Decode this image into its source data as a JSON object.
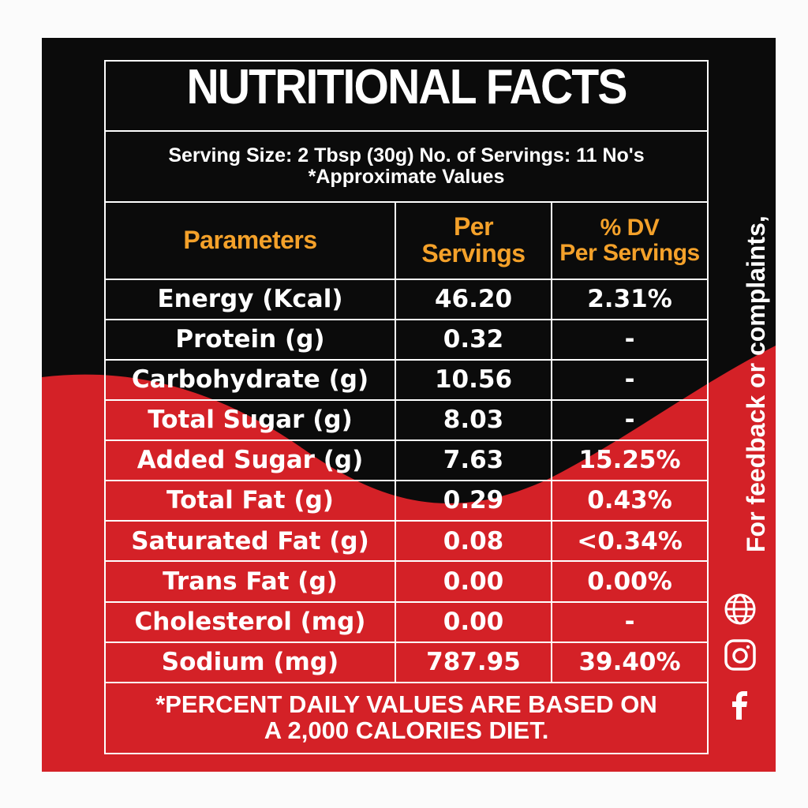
{
  "title": "NUTRITIONAL FACTS",
  "serving": {
    "line1": "Serving Size: 2 Tbsp (30g) No. of Servings: 11 No's",
    "line2": "*Approximate Values"
  },
  "headers": {
    "parameters": "Parameters",
    "per_servings_1": "Per",
    "per_servings_2": "Servings",
    "dv_1": "% DV",
    "dv_2": "Per Servings"
  },
  "rows": [
    {
      "parameter": "Energy (Kcal)",
      "per_serving": "46.20",
      "dv": "2.31%"
    },
    {
      "parameter": "Protein (g)",
      "per_serving": "0.32",
      "dv": "-"
    },
    {
      "parameter": "Carbohydrate (g)",
      "per_serving": "10.56",
      "dv": "-"
    },
    {
      "parameter": "Total Sugar (g)",
      "per_serving": "8.03",
      "dv": "-"
    },
    {
      "parameter": "Added Sugar (g)",
      "per_serving": "7.63",
      "dv": "15.25%"
    },
    {
      "parameter": "Total Fat (g)",
      "per_serving": "0.29",
      "dv": "0.43%"
    },
    {
      "parameter": "Saturated Fat (g)",
      "per_serving": "0.08",
      "dv": "<0.34%"
    },
    {
      "parameter": "Trans Fat (g)",
      "per_serving": "0.00",
      "dv": "0.00%"
    },
    {
      "parameter": "Cholesterol (mg)",
      "per_serving": "0.00",
      "dv": "-"
    },
    {
      "parameter": "Sodium (mg)",
      "per_serving": "787.95",
      "dv": "39.40%"
    }
  ],
  "footer": {
    "line1": "*PERCENT DAILY VALUES ARE BASED ON",
    "line2": "A 2,000 CALORIES DIET."
  },
  "side_text": "For feedback or complaints,",
  "icons": [
    "globe-icon",
    "instagram-icon",
    "facebook-icon"
  ],
  "colors": {
    "black": "#0b0b0b",
    "red": "#d42127",
    "orange": "#f4a12a",
    "white": "#ffffff"
  }
}
